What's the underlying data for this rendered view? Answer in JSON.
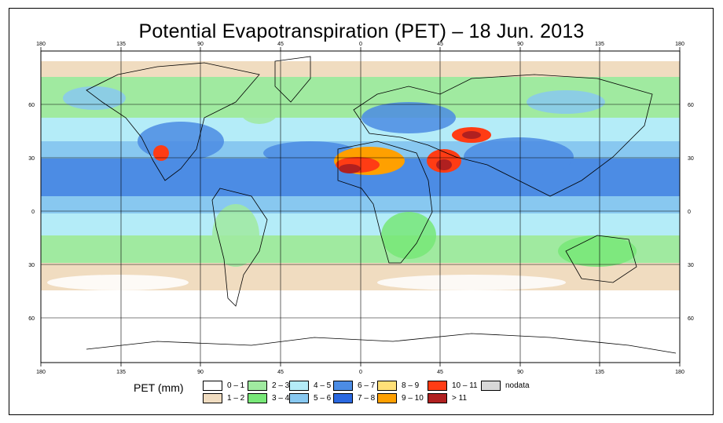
{
  "title": "Potential Evapotranspiration (PET) – 18 Jun. 2013",
  "axes": {
    "top_lon_labels": [
      "180",
      "135",
      "90",
      "45",
      "0",
      "45",
      "90",
      "135",
      "180"
    ],
    "bottom_lon_labels": [
      "180",
      "135",
      "90",
      "45",
      "0",
      "45",
      "90",
      "135",
      "180"
    ],
    "left_lat_labels": [
      "60",
      "30",
      "0",
      "30",
      "60"
    ],
    "right_lat_labels": [
      "60",
      "30",
      "0",
      "30",
      "60"
    ]
  },
  "legend": {
    "title": "PET (mm)",
    "items": [
      {
        "label": "0 – 1",
        "color": "#ffffff"
      },
      {
        "label": "1 – 2",
        "color": "#f0dcc0"
      },
      {
        "label": "2 – 3",
        "color": "#a0eaa0"
      },
      {
        "label": "3 – 4",
        "color": "#78e878"
      },
      {
        "label": "4 – 5",
        "color": "#b4ecf8"
      },
      {
        "label": "5 – 6",
        "color": "#88c8f0"
      },
      {
        "label": "6 – 7",
        "color": "#4c8ce4"
      },
      {
        "label": "7 – 8",
        "color": "#2a68e0"
      },
      {
        "label": "8 – 9",
        "color": "#ffe078"
      },
      {
        "label": "9 – 10",
        "color": "#ffa000"
      },
      {
        "label": "10 – 11",
        "color": "#ff3c14"
      },
      {
        "label": "> 11",
        "color": "#b02020"
      },
      {
        "label": "nodata",
        "color": "#d8d8d8"
      }
    ]
  }
}
